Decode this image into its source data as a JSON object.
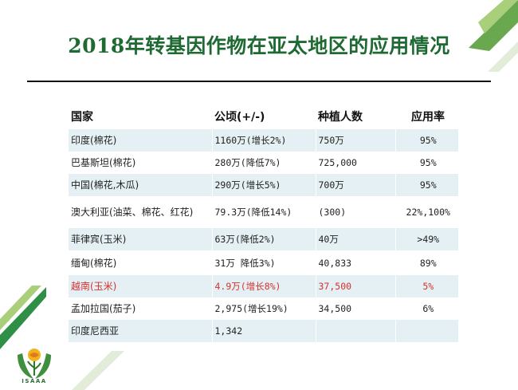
{
  "title": "2018年转基因作物在亚太地区的应用情况",
  "table": {
    "headers": [
      "国家",
      "公顷(+/-)",
      "种植人数",
      "应用率"
    ],
    "rows": [
      {
        "country": "印度(棉花)",
        "hectares": "1160万(增长2%)",
        "growers": "750万",
        "rate": "95%"
      },
      {
        "country": "巴基斯坦(棉花)",
        "hectares": "280万(降低7%)",
        "growers": "725,000",
        "rate": "95%"
      },
      {
        "country": "中国(棉花,木瓜)",
        "hectares": "290万(增长5%)",
        "growers": "700万",
        "rate": "95%"
      },
      {
        "country": "澳大利亚(油菜、棉花、红花)",
        "hectares": "79.3万(降低14%)",
        "growers": "(300)",
        "rate": "22%,100%"
      },
      {
        "country": "菲律宾(玉米)",
        "hectares": "63万(降低2%)",
        "growers": "40万",
        "rate": ">49%"
      },
      {
        "country": "缅甸(棉花)",
        "hectares": "31万 降低3%)",
        "growers": "40,833",
        "rate": "89%"
      },
      {
        "country": "越南(玉米)",
        "hectares": "4.9万(增长8%)",
        "growers": "37,500",
        "rate": "5%"
      },
      {
        "country": "孟加拉国(茄子)",
        "hectares": "2,975(增长19%)",
        "growers": "34,500",
        "rate": "6%"
      },
      {
        "country": "印度尼西亚",
        "hectares": "1,342",
        "growers": "",
        "rate": ""
      }
    ]
  },
  "logo": {
    "text": "ISAAA"
  },
  "colors": {
    "title": "#1f6a33",
    "highlight": "#d7312f",
    "band": "#e4f0f4",
    "stripe_dark": "#2f8f46",
    "stripe_light": "#a9cf7a",
    "stripe_pale": "#e3ecd9"
  }
}
